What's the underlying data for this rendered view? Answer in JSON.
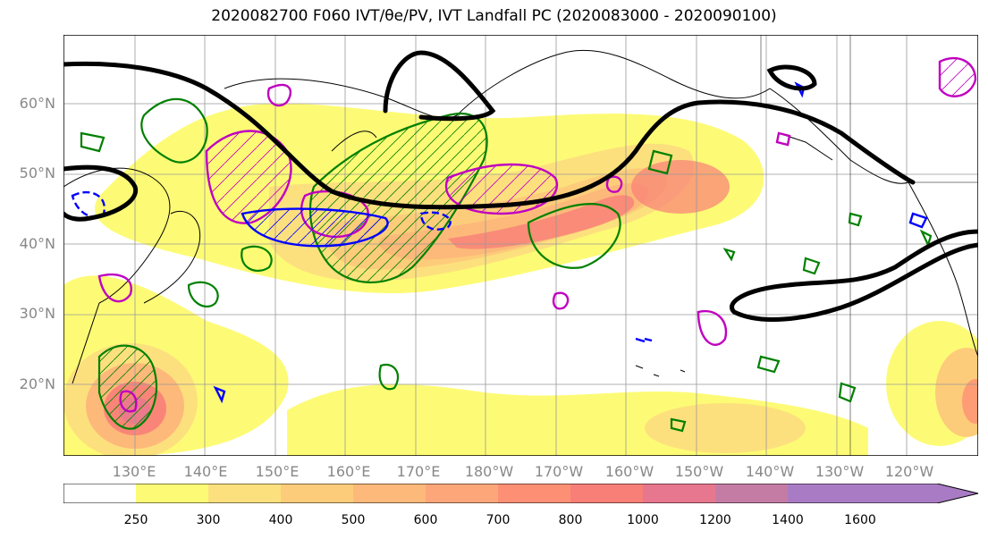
{
  "title": "2020082700 F060 IVT/θe/PV, IVT Landfall PC (2020083000 - 2020090100)",
  "lat_labels": [
    "60°N",
    "50°N",
    "40°N",
    "30°N",
    "20°N"
  ],
  "lon_labels": [
    "130°E",
    "140°E",
    "150°E",
    "160°E",
    "170°E",
    "180°W",
    "170°W",
    "160°W",
    "150°W",
    "140°W",
    "130°W",
    "120°W"
  ],
  "colorbar": {
    "ticks": [
      "250",
      "300",
      "400",
      "500",
      "600",
      "700",
      "800",
      "1000",
      "1200",
      "1400",
      "1600"
    ],
    "colors": [
      "#ffffff",
      "#fdfb75",
      "#fde07e",
      "#fdcc7a",
      "#fdb97a",
      "#fda679",
      "#fd9074",
      "#f87f78",
      "#e7778e",
      "#c47ca4",
      "#a97bc4"
    ]
  },
  "legend_colors": {
    "pv": "#008000",
    "theta_e": "#c000c0",
    "landfall": "#0000ff",
    "ivt_contour": "#000000"
  }
}
